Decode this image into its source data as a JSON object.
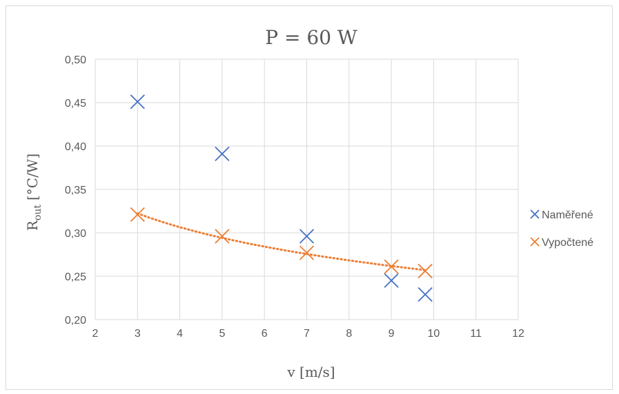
{
  "chart_data": {
    "type": "scatter",
    "title": "P = 60 W",
    "xlabel": "v [m/s]",
    "ylabel_main": "R",
    "ylabel_sub": "out",
    "ylabel_unit": "[°C/W]",
    "xlim": [
      2,
      12
    ],
    "ylim": [
      0.2,
      0.5
    ],
    "xticks": [
      "2",
      "3",
      "4",
      "5",
      "6",
      "7",
      "8",
      "9",
      "10",
      "11",
      "12"
    ],
    "yticks": [
      "0,20",
      "0,25",
      "0,30",
      "0,35",
      "0,40",
      "0,45",
      "0,50"
    ],
    "grid": true,
    "legend_position": "right",
    "series": [
      {
        "name": "Naměřené",
        "color": "#4472C4",
        "marker": "x",
        "points": [
          [
            3,
            0.451
          ],
          [
            5,
            0.391
          ],
          [
            7,
            0.296
          ],
          [
            9,
            0.245
          ],
          [
            9.8,
            0.229
          ]
        ]
      },
      {
        "name": "Vypočtené",
        "color": "#ED7D31",
        "marker": "x",
        "points": [
          [
            3,
            0.321
          ],
          [
            5,
            0.296
          ],
          [
            7,
            0.277
          ],
          [
            9,
            0.261
          ],
          [
            9.8,
            0.256
          ]
        ],
        "trendline": "dotted"
      }
    ]
  }
}
